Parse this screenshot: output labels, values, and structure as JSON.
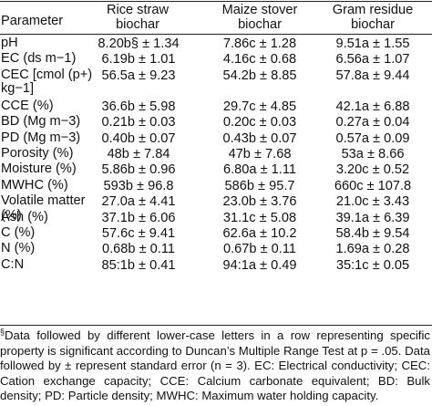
{
  "table": {
    "headers": {
      "parameter": "Parameter",
      "col1_line1": "Rice straw",
      "col1_line2": "biochar",
      "col2_line1": "Maize stover",
      "col2_line2": "biochar",
      "col3_line1": "Gram residue",
      "col3_line2": "biochar"
    },
    "rows": [
      {
        "name": "pH",
        "v1": "8.20b§ ± 1.34",
        "v2": "7.86c ± 1.28",
        "v3": "9.51a ± 1.55"
      },
      {
        "name": "EC (ds m−1)",
        "v1": "6.19b ± 1.01",
        "v2": "4.16c ± 0.68",
        "v3": "6.56a ± 1.07"
      },
      {
        "name": "CEC [cmol (p+) kg−1]",
        "v1": "56.5a ± 9.23",
        "v2": "54.2b ± 8.85",
        "v3": "57.8a ± 9.44"
      },
      {
        "name": "CCE (%)",
        "v1": "36.6b ± 5.98",
        "v2": "29.7c ± 4.85",
        "v3": "42.1a ± 6.88"
      },
      {
        "name": "BD (Mg m−3)",
        "v1": "0.21b ± 0.03",
        "v2": "0.20c ± 0.03",
        "v3": "0.27a ± 0.04"
      },
      {
        "name": "PD (Mg m−3)",
        "v1": "0.40b ± 0.07",
        "v2": "0.43b ± 0.07",
        "v3": "0.57a ± 0.09"
      },
      {
        "name": "Porosity (%)",
        "v1": "48b ± 7.84",
        "v2": "47b ± 7.68",
        "v3": "53a ± 8.66"
      },
      {
        "name": "Moisture (%)",
        "v1": "5.86b ± 0.96",
        "v2": "6.80a ± 1.11",
        "v3": "3.20c ± 0.52"
      },
      {
        "name": "MWHC (%)",
        "v1": "593b ± 96.8",
        "v2": "586b ± 95.7",
        "v3": "660c ± 107.8"
      },
      {
        "name": "Volatile matter (%)",
        "v1": "27.0a ± 4.41",
        "v2": "23.0b ± 3.76",
        "v3": "21.0c ± 3.43"
      },
      {
        "name": "Ash (%)",
        "v1": "37.1b ± 6.06",
        "v2": "31.1c ± 5.08",
        "v3": "39.1a ± 6.39"
      },
      {
        "name": "C (%)",
        "v1": "57.6c ± 9.41",
        "v2": "62.6a ± 10.2",
        "v3": "58.4b ± 9.54"
      },
      {
        "name": "N (%)",
        "v1": "0.68b ± 0.11",
        "v2": "0.67b ± 0.11",
        "v3": "1.69a ± 0.28"
      },
      {
        "name": "C:N",
        "v1": "85:1b ± 0.41",
        "v2": "94:1a ± 0.49",
        "v3": "35:1c ± 0.05"
      }
    ]
  },
  "footnote": {
    "marker": "§",
    "text": "Data followed by different lower-case letters in a row representing specific property is significant according to Duncan’s Multiple Range Test at p = .05. Data followed by ± represent standard error (n = 3). EC: Electrical conductivity; CEC: Cation exchange capacity; CCE: Calcium carbonate equivalent; BD: Bulk density; PD: Particle density; MWHC: Maximum water holding capacity."
  }
}
